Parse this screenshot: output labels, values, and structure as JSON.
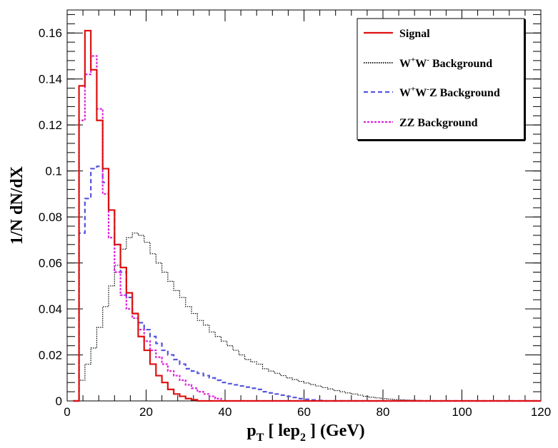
{
  "chart_data": {
    "type": "line",
    "subtype": "step-histogram",
    "title": "",
    "xlabel": "p_T [ lep_2 ] (GeV)",
    "ylabel": "1/N dN/dX",
    "xlim": [
      0,
      120
    ],
    "ylim": [
      0,
      0.17
    ],
    "bin_width": 1.5,
    "x_ticks": [
      0,
      20,
      40,
      60,
      80,
      100,
      120
    ],
    "x_tick_labels": [
      "0",
      "20",
      "40",
      "60",
      "80",
      "100",
      "120"
    ],
    "y_ticks": [
      0,
      0.02,
      0.04,
      0.06,
      0.08,
      0.1,
      0.12,
      0.14,
      0.16
    ],
    "y_tick_labels": [
      "0",
      "0.02",
      "0.04",
      "0.06",
      "0.08",
      "0.1",
      "0.12",
      "0.14",
      "0.16"
    ],
    "legend_position": "top-right",
    "series": [
      {
        "name": "Signal",
        "color": "#dd1111",
        "style": "solid",
        "values": [
          0.0,
          0.137,
          0.161,
          0.144,
          0.122,
          0.101,
          0.083,
          0.068,
          0.058,
          0.047,
          0.038,
          0.028,
          0.022,
          0.016,
          0.011,
          0.008,
          0.005,
          0.003,
          0.002,
          0.001,
          0.0005
        ]
      },
      {
        "name": "W+W- Background",
        "color": "#000000",
        "style": "dotted",
        "values": [
          0.0,
          0.009,
          0.016,
          0.023,
          0.032,
          0.041,
          0.05,
          0.059,
          0.066,
          0.071,
          0.073,
          0.072,
          0.069,
          0.064,
          0.06,
          0.056,
          0.052,
          0.048,
          0.045,
          0.041,
          0.038,
          0.035,
          0.033,
          0.03,
          0.028,
          0.026,
          0.024,
          0.022,
          0.02,
          0.018,
          0.017,
          0.016,
          0.014,
          0.013,
          0.012,
          0.011,
          0.01,
          0.0093,
          0.0085,
          0.0078,
          0.0071,
          0.0065,
          0.0058,
          0.0052,
          0.0045,
          0.004,
          0.0035,
          0.003,
          0.0025,
          0.002,
          0.0016,
          0.0013,
          0.001,
          0.0008,
          0.0006,
          0.0005,
          0.0004,
          0.0003,
          0.0002,
          0.0001
        ]
      },
      {
        "name": "W+W-Z Background",
        "color": "#5555dd",
        "style": "dashed",
        "values": [
          0.0,
          0.073,
          0.088,
          0.101,
          0.102,
          0.095,
          0.083,
          0.068,
          0.056,
          0.045,
          0.038,
          0.034,
          0.031,
          0.028,
          0.025,
          0.022,
          0.02,
          0.018,
          0.016,
          0.014,
          0.013,
          0.012,
          0.011,
          0.01,
          0.009,
          0.008,
          0.0075,
          0.007,
          0.0065,
          0.006,
          0.0055,
          0.005,
          0.004,
          0.0035,
          0.003,
          0.0025,
          0.002,
          0.0015,
          0.001,
          0.0007,
          0.0004,
          0.0002
        ]
      },
      {
        "name": "ZZ Background",
        "color": "#dd22dd",
        "style": "dotted",
        "values": [
          0.0,
          0.122,
          0.142,
          0.15,
          0.127,
          0.09,
          0.071,
          0.056,
          0.046,
          0.04,
          0.036,
          0.031,
          0.026,
          0.022,
          0.019,
          0.016,
          0.013,
          0.011,
          0.009,
          0.007,
          0.0055,
          0.004,
          0.003,
          0.002,
          0.001
        ]
      }
    ]
  }
}
